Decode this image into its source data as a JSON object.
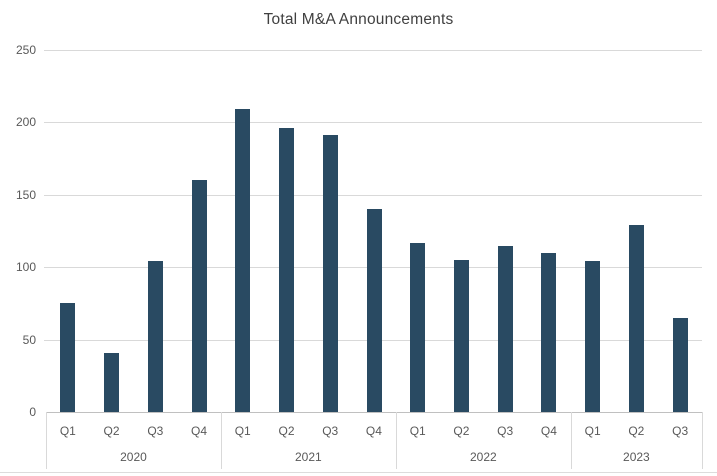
{
  "chart_data": {
    "type": "bar",
    "title": "Total M&A Announcements",
    "categories": [
      "Q1 2020",
      "Q2 2020",
      "Q3 2020",
      "Q4 2020",
      "Q1 2021",
      "Q2 2021",
      "Q3 2021",
      "Q4 2021",
      "Q1 2022",
      "Q2 2022",
      "Q3 2022",
      "Q4 2022",
      "Q1 2023",
      "Q2 2023",
      "Q3 2023"
    ],
    "values": [
      75,
      41,
      104,
      160,
      209,
      196,
      191,
      140,
      117,
      105,
      115,
      110,
      104,
      129,
      65
    ],
    "groups": [
      {
        "year": "2020",
        "quarters": [
          "Q1",
          "Q2",
          "Q3",
          "Q4"
        ],
        "values": [
          75,
          41,
          104,
          160
        ]
      },
      {
        "year": "2021",
        "quarters": [
          "Q1",
          "Q2",
          "Q3",
          "Q4"
        ],
        "values": [
          209,
          196,
          191,
          140
        ]
      },
      {
        "year": "2022",
        "quarters": [
          "Q1",
          "Q2",
          "Q3",
          "Q4"
        ],
        "values": [
          117,
          105,
          115,
          110
        ]
      },
      {
        "year": "2023",
        "quarters": [
          "Q1",
          "Q2",
          "Q3"
        ],
        "values": [
          104,
          129,
          65
        ]
      }
    ],
    "xlabel": "",
    "ylabel": "",
    "y_axis": {
      "min": 0,
      "max": 250,
      "step": 50,
      "tick_labels": [
        "0",
        "50",
        "100",
        "150",
        "200",
        "250"
      ]
    },
    "grid": true,
    "legend": false,
    "colors": {
      "bar": "#294A62",
      "gridline": "#D9D9D9",
      "axis_line": "#C0C0C0",
      "separator": "#D9D9D9",
      "tick_label": "#595959",
      "title": "#404040",
      "background": "#FFFFFF",
      "bottom_rule": "#DCDCDC"
    }
  }
}
